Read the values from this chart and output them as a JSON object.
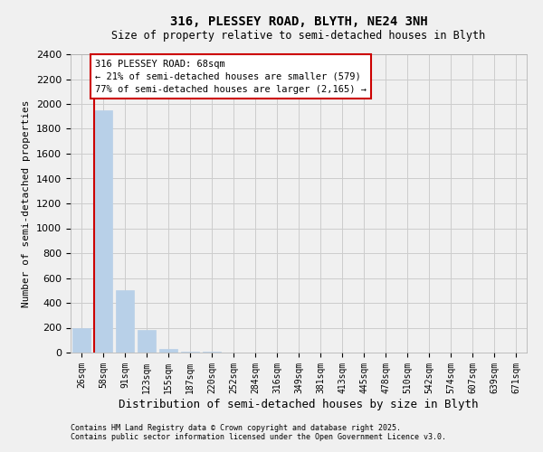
{
  "title": "316, PLESSEY ROAD, BLYTH, NE24 3NH",
  "subtitle": "Size of property relative to semi-detached houses in Blyth",
  "xlabel": "Distribution of semi-detached houses by size in Blyth",
  "ylabel": "Number of semi-detached properties",
  "annotation_title": "316 PLESSEY ROAD: 68sqm",
  "annotation_line1": "← 21% of semi-detached houses are smaller (579)",
  "annotation_line2": "77% of semi-detached houses are larger (2,165) →",
  "footer_line1": "Contains HM Land Registry data © Crown copyright and database right 2025.",
  "footer_line2": "Contains public sector information licensed under the Open Government Licence v3.0.",
  "bar_labels": [
    "26sqm",
    "58sqm",
    "91sqm",
    "123sqm",
    "155sqm",
    "187sqm",
    "220sqm",
    "252sqm",
    "284sqm",
    "316sqm",
    "349sqm",
    "381sqm",
    "413sqm",
    "445sqm",
    "478sqm",
    "510sqm",
    "542sqm",
    "574sqm",
    "607sqm",
    "639sqm",
    "671sqm"
  ],
  "bar_values": [
    200,
    1950,
    500,
    185,
    30,
    10,
    5,
    3,
    2,
    2,
    1,
    1,
    1,
    1,
    0,
    0,
    0,
    0,
    0,
    0,
    0
  ],
  "bar_color": "#b8d0e8",
  "bar_edge_color": "#b8d0e8",
  "grid_color": "#cccccc",
  "background_color": "#f0f0f0",
  "vline_color": "#cc0000",
  "annotation_box_color": "#cc0000",
  "ylim": [
    0,
    2400
  ],
  "yticks": [
    0,
    200,
    400,
    600,
    800,
    1000,
    1200,
    1400,
    1600,
    1800,
    2000,
    2200,
    2400
  ]
}
